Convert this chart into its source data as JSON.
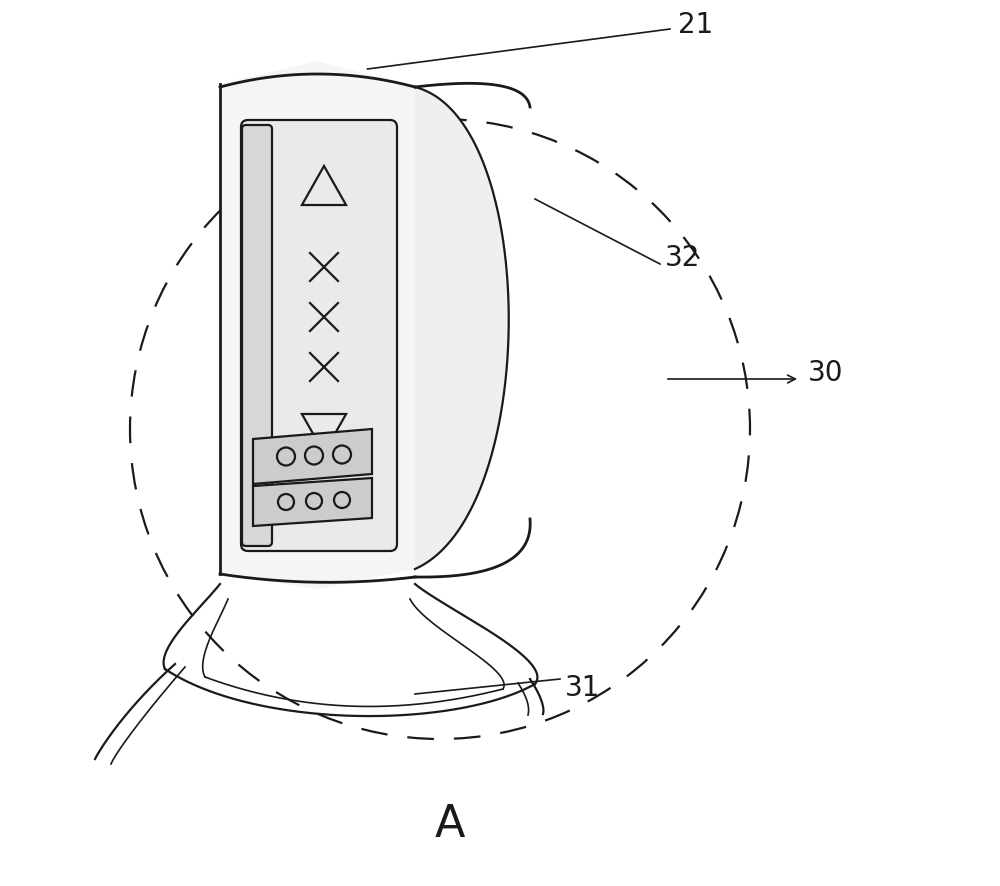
{
  "bg_color": "#ffffff",
  "line_color": "#1a1a1a",
  "label_21": "21",
  "label_30": "30",
  "label_31": "31",
  "label_32": "32",
  "label_A": "A",
  "fig_width": 10.0,
  "fig_height": 8.87,
  "lw_main": 1.6,
  "lw_thick": 2.0,
  "lw_thin": 1.2
}
